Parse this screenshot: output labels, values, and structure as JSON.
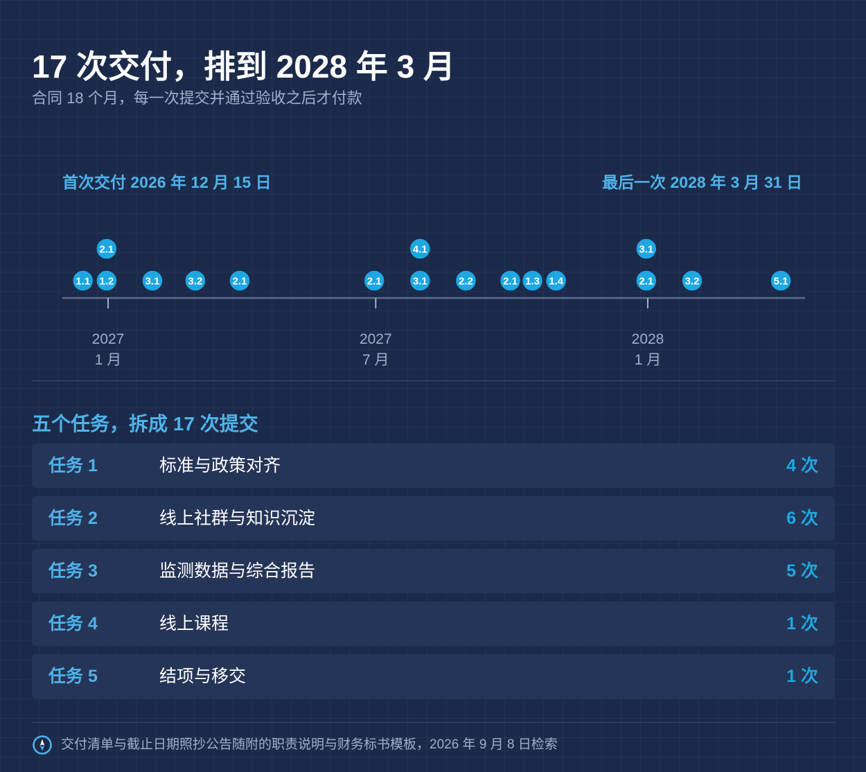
{
  "header": {
    "title": "17 次交付，排到 2028 年 3 月",
    "subtitle": "合同 18 个月，每一次提交并通过验收之后才付款"
  },
  "timeline": {
    "start_label": "首次交付 2026 年 12 月 15 日",
    "end_label": "最后一次 2028 年 3 月 31 日",
    "axis_ticks": [
      {
        "year": "2027",
        "month": "1 月",
        "date": "2027-01-01"
      },
      {
        "year": "2027",
        "month": "7 月",
        "date": "2027-07-01"
      },
      {
        "year": "2028",
        "month": "1 月",
        "date": "2028-01-01"
      }
    ],
    "deliveries": [
      {
        "label": "1.1",
        "date": "2026-12-15"
      },
      {
        "label": "1.2",
        "date": "2026-12-31"
      },
      {
        "label": "2.1",
        "date": "2026-12-31"
      },
      {
        "label": "3.1",
        "date": "2027-01-31"
      },
      {
        "label": "3.2",
        "date": "2027-03-01"
      },
      {
        "label": "2.1",
        "date": "2027-03-31"
      },
      {
        "label": "2.1",
        "date": "2027-06-30"
      },
      {
        "label": "3.1",
        "date": "2027-07-31"
      },
      {
        "label": "4.1",
        "date": "2027-07-31"
      },
      {
        "label": "2.2",
        "date": "2027-08-31"
      },
      {
        "label": "2.1",
        "date": "2027-09-30"
      },
      {
        "label": "1.3",
        "date": "2027-10-15"
      },
      {
        "label": "1.4",
        "date": "2027-10-31"
      },
      {
        "label": "2.1",
        "date": "2027-12-31"
      },
      {
        "label": "3.1",
        "date": "2027-12-31"
      },
      {
        "label": "3.2",
        "date": "2028-01-31"
      },
      {
        "label": "5.1",
        "date": "2028-03-31"
      }
    ]
  },
  "tasks_section": {
    "title": "五个任务，拆成 17 次提交",
    "tasks": [
      {
        "id": "任务 1",
        "name": "标准与政策对齐",
        "count": "4 次"
      },
      {
        "id": "任务 2",
        "name": "线上社群与知识沉淀",
        "count": "6 次"
      },
      {
        "id": "任务 3",
        "name": "监测数据与综合报告",
        "count": "5 次"
      },
      {
        "id": "任务 4",
        "name": "线上课程",
        "count": "1 次"
      },
      {
        "id": "任务 5",
        "name": "结项与移交",
        "count": "1 次"
      }
    ]
  },
  "footer": {
    "source": "交付清单与截止日期照抄公告随附的职责说明与财务标书模板，2026 年 9 月 8 日检索",
    "icon": "compass-icon"
  },
  "colors": {
    "background": "#1b2a4a",
    "accent": "#4fb3ea",
    "marker": "#1ea7e1",
    "row": "#253557",
    "muted": "#9fb0c9"
  }
}
